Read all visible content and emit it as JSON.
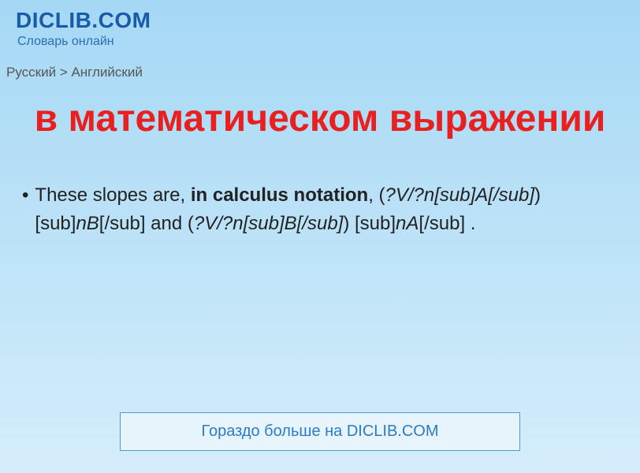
{
  "header": {
    "logo": "DICLIB.COM",
    "tagline": "Словарь онлайн"
  },
  "breadcrumb": "Русский > Английский",
  "title": "в математическом выражении",
  "entry": {
    "prefix": "These slopes are, ",
    "bold": "in calculus notation",
    "rest1": ", (",
    "italic1": "?V/?n[sub]A[/sub]",
    "rest2": ")[sub]",
    "italic2": "nB",
    "rest3": "[/sub] and (",
    "italic3": "?V/?n[sub]B[/sub]",
    "rest4": ") [sub]",
    "italic4": "nA",
    "rest5": "[/sub] ."
  },
  "cta": "Гораздо больше на DICLIB.COM"
}
